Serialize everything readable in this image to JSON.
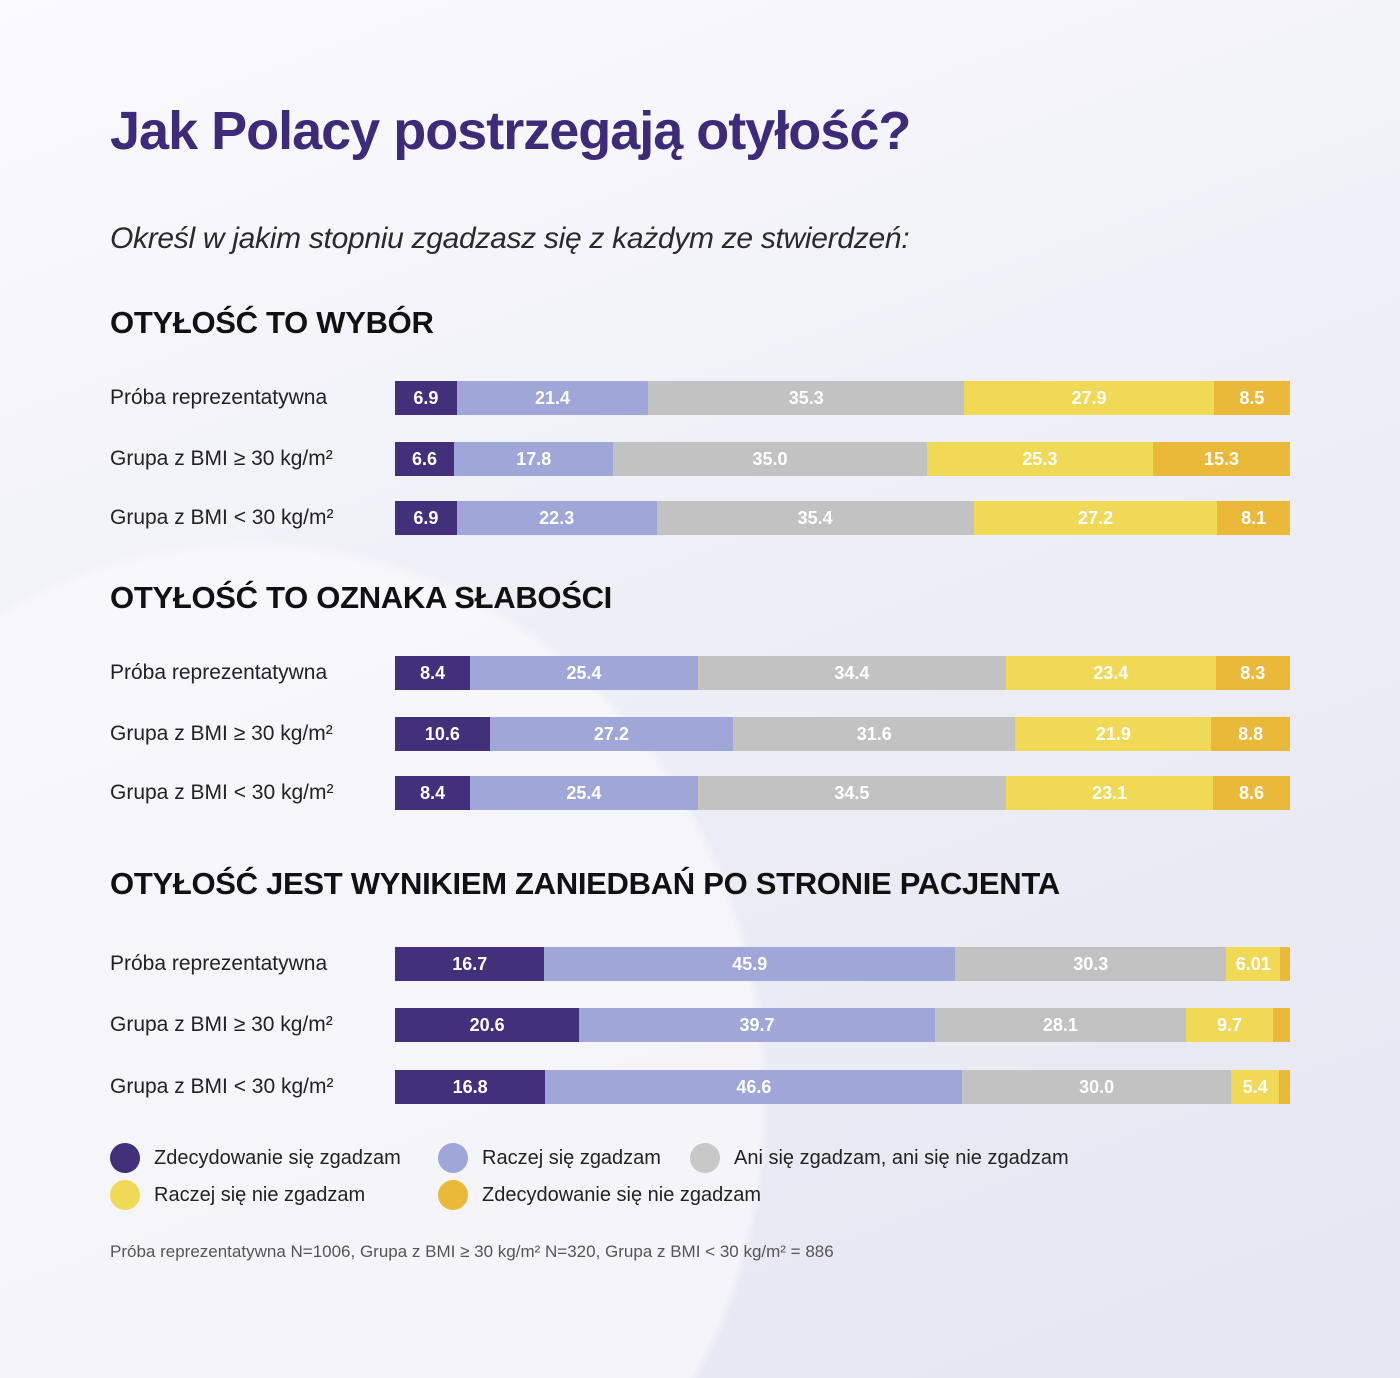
{
  "title": "Jak Polacy postrzegają otyłość?",
  "subtitle": "Określ w jakim stopniu zgadzasz się z każdym ze stwierdzeń:",
  "colors": [
    "#42307a",
    "#9fa6d8",
    "#c2c2c2",
    "#efd957",
    "#ebb93a"
  ],
  "legend": [
    "Zdecydowanie się zgadzam",
    "Raczej się zgadzam",
    "Ani się zgadzam, ani się nie zgadzam",
    "Raczej się nie zgadzam",
    "Zdecydowanie się nie zgadzam"
  ],
  "footnote": "Próba reprezentatywna N=1006, Grupa z BMI ≥ 30 kg/m² N=320, Grupa z BMI < 30 kg/m² = 886",
  "chart_data": {
    "type": "bar",
    "orientation": "horizontal-stacked-100",
    "series_names": [
      "Zdecydowanie się zgadzam",
      "Raczej się zgadzam",
      "Ani się zgadzam, ani się nie zgadzam",
      "Raczej się nie zgadzam",
      "Zdecydowanie się nie zgadzam"
    ],
    "sections": [
      {
        "title": "OTYŁOŚĆ TO WYBÓR",
        "rows": [
          {
            "label": "Próba reprezentatywna",
            "values": [
              6.9,
              21.4,
              35.3,
              27.9,
              8.5
            ],
            "labels": [
              "6.9",
              "21.4",
              "35.3",
              "27.9",
              "8.5"
            ]
          },
          {
            "label": "Grupa z BMI ≥ 30 kg/m²",
            "values": [
              6.6,
              17.8,
              35.0,
              25.3,
              15.3
            ],
            "labels": [
              "6.6",
              "17.8",
              "35.0",
              "25.3",
              "15.3"
            ]
          },
          {
            "label": "Grupa z BMI < 30 kg/m²",
            "values": [
              6.9,
              22.3,
              35.4,
              27.2,
              8.1
            ],
            "labels": [
              "6.9",
              "22.3",
              "35.4",
              "27.2",
              "8.1"
            ]
          }
        ]
      },
      {
        "title": "OTYŁOŚĆ TO OZNAKA SŁABOŚCI",
        "rows": [
          {
            "label": "Próba reprezentatywna",
            "values": [
              8.4,
              25.4,
              34.4,
              23.4,
              8.3
            ],
            "labels": [
              "8.4",
              "25.4",
              "34.4",
              "23.4",
              "8.3"
            ]
          },
          {
            "label": "Grupa z BMI ≥ 30 kg/m²",
            "values": [
              10.6,
              27.2,
              31.6,
              21.9,
              8.8
            ],
            "labels": [
              "10.6",
              "27.2",
              "31.6",
              "21.9",
              "8.8"
            ]
          },
          {
            "label": "Grupa z BMI < 30 kg/m²",
            "values": [
              8.4,
              25.4,
              34.5,
              23.1,
              8.6
            ],
            "labels": [
              "8.4",
              "25.4",
              "34.5",
              "23.1",
              "8.6"
            ]
          }
        ]
      },
      {
        "title": "OTYŁOŚĆ JEST WYNIKIEM ZANIEDBAŃ PO STRONIE PACJENTA",
        "rows": [
          {
            "label": "Próba reprezentatywna",
            "values": [
              16.7,
              45.9,
              30.3,
              6.01,
              1.1
            ],
            "labels": [
              "16.7",
              "45.9",
              "30.3",
              "6.01",
              ""
            ]
          },
          {
            "label": "Grupa z BMI ≥ 30 kg/m²",
            "values": [
              20.6,
              39.7,
              28.1,
              9.7,
              1.9
            ],
            "labels": [
              "20.6",
              "39.7",
              "28.1",
              "9.7",
              ""
            ]
          },
          {
            "label": "Grupa z BMI < 30 kg/m²",
            "values": [
              16.8,
              46.6,
              30.0,
              5.4,
              1.2
            ],
            "labels": [
              "16.8",
              "46.6",
              "30.0",
              "5.4",
              ""
            ]
          }
        ]
      }
    ]
  }
}
